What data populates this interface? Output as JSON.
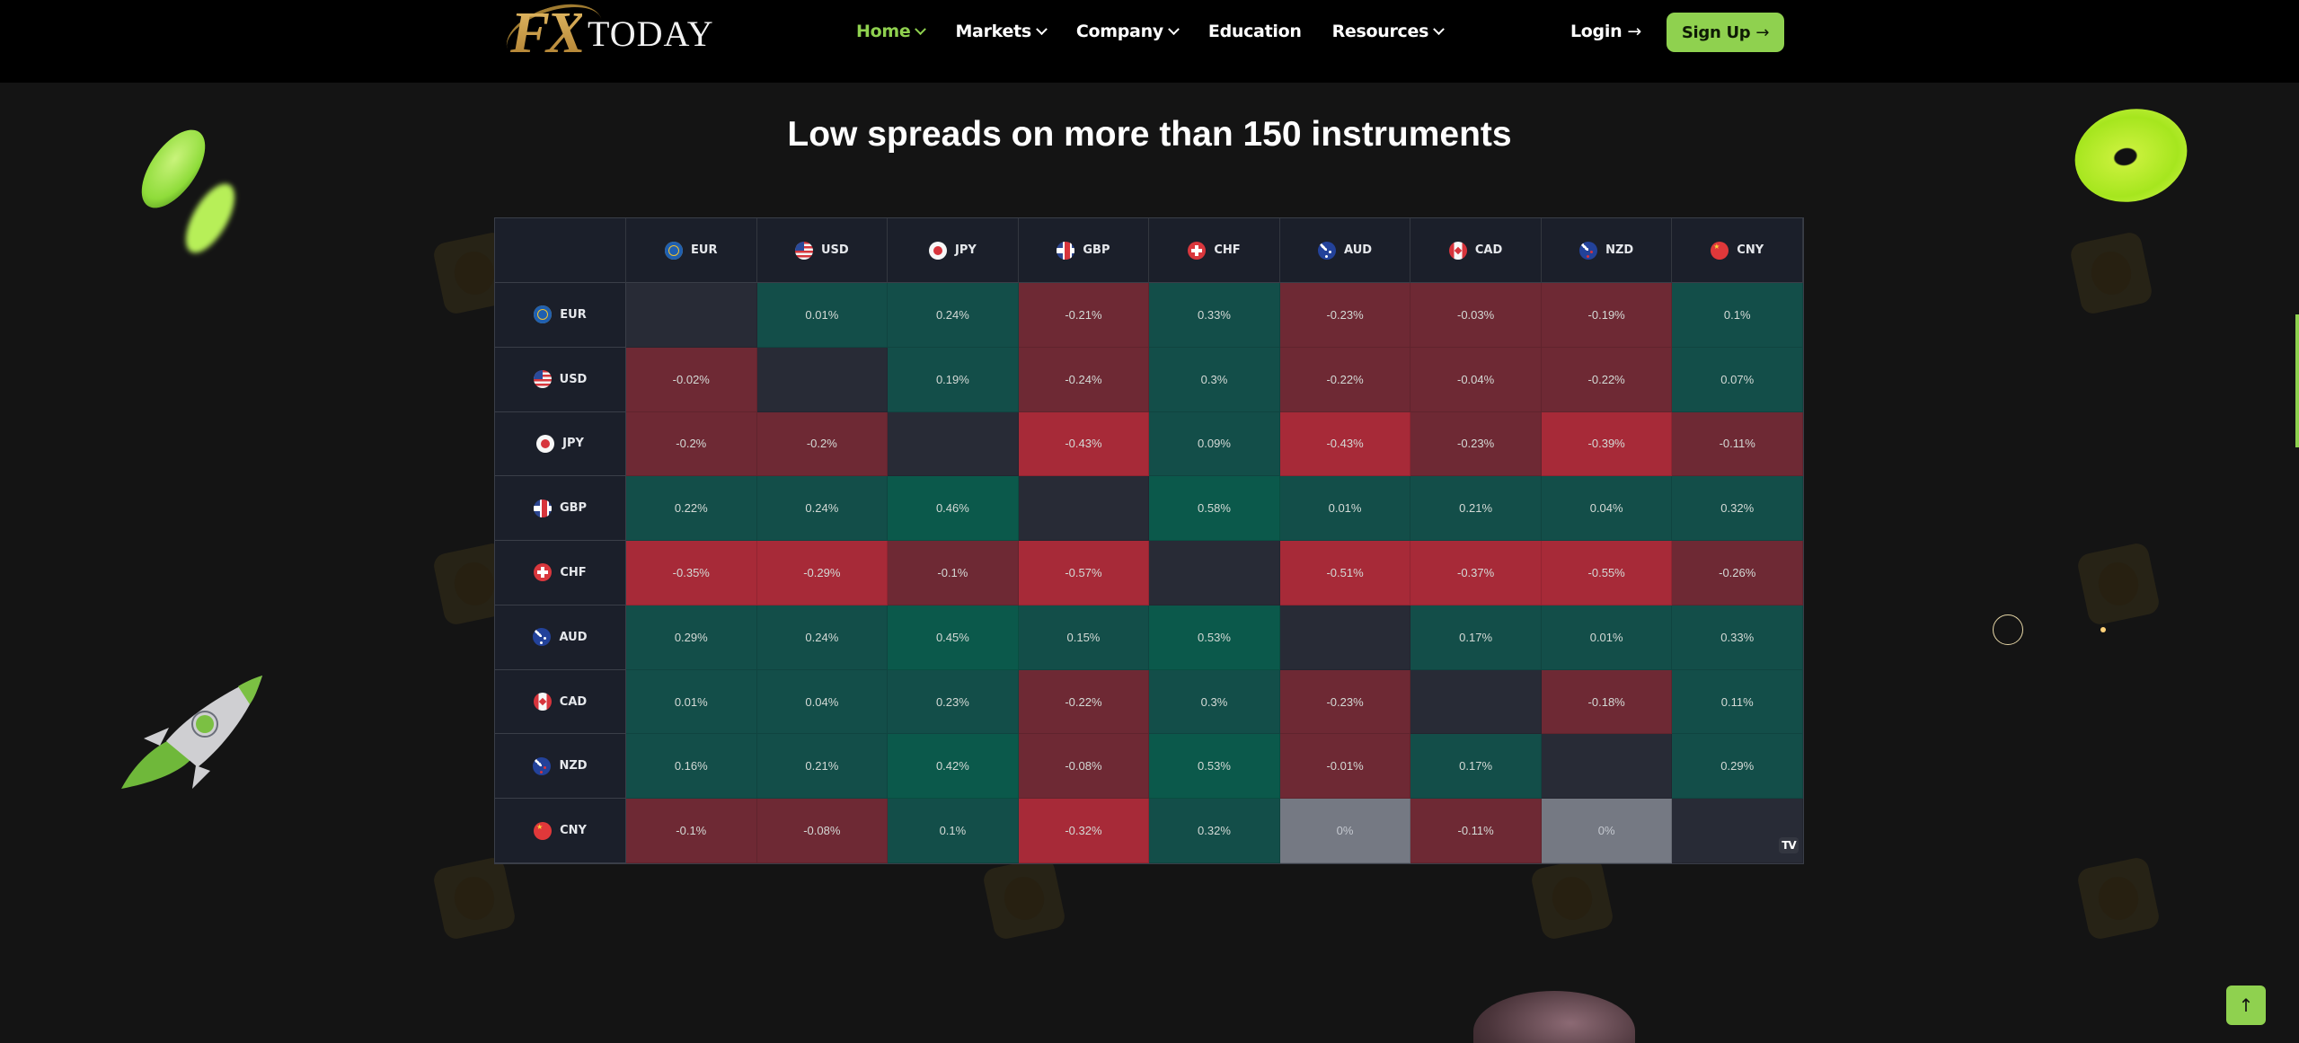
{
  "header": {
    "logo": {
      "mark": "FX",
      "text": "TODAY"
    },
    "nav": [
      {
        "label": "Home",
        "has_dropdown": true,
        "active": true
      },
      {
        "label": "Markets",
        "has_dropdown": true,
        "active": false
      },
      {
        "label": "Company",
        "has_dropdown": true,
        "active": false
      },
      {
        "label": "Education",
        "has_dropdown": false,
        "active": false
      },
      {
        "label": "Resources",
        "has_dropdown": true,
        "active": false
      }
    ],
    "login_label": "Login",
    "signup_label": "Sign Up",
    "arrow_icon": "→"
  },
  "section": {
    "title": "Low spreads on more than 150 instruments"
  },
  "colors": {
    "accent": "#8fd14f",
    "positive": "#134e49",
    "positive_strong": "#0b594b",
    "negative": "#6e2934",
    "negative_strong": "#a72a38",
    "neutral": "#757983",
    "diagonal": "#282b36",
    "header_bg": "#1b1f2a"
  },
  "matrix": {
    "currencies": [
      "EUR",
      "USD",
      "JPY",
      "GBP",
      "CHF",
      "AUD",
      "CAD",
      "NZD",
      "CNY"
    ],
    "flag_icons": [
      "eu-flag-icon",
      "us-flag-icon",
      "jp-flag-icon",
      "gb-flag-icon",
      "ch-flag-icon",
      "au-flag-icon",
      "ca-flag-icon",
      "nz-flag-icon",
      "cn-flag-icon"
    ],
    "rows": [
      {
        "base": "EUR",
        "values": [
          "",
          "0.01%",
          "0.24%",
          "-0.21%",
          "0.33%",
          "-0.23%",
          "-0.03%",
          "-0.19%",
          "0.1%"
        ]
      },
      {
        "base": "USD",
        "values": [
          "-0.02%",
          "",
          "0.19%",
          "-0.24%",
          "0.3%",
          "-0.22%",
          "-0.04%",
          "-0.22%",
          "0.07%"
        ]
      },
      {
        "base": "JPY",
        "values": [
          "-0.2%",
          "-0.2%",
          "",
          "-0.43%",
          "0.09%",
          "-0.43%",
          "-0.23%",
          "-0.39%",
          "-0.11%"
        ]
      },
      {
        "base": "GBP",
        "values": [
          "0.22%",
          "0.24%",
          "0.46%",
          "",
          "0.58%",
          "0.01%",
          "0.21%",
          "0.04%",
          "0.32%"
        ]
      },
      {
        "base": "CHF",
        "values": [
          "-0.35%",
          "-0.29%",
          "-0.1%",
          "-0.57%",
          "",
          "-0.51%",
          "-0.37%",
          "-0.55%",
          "-0.26%"
        ]
      },
      {
        "base": "AUD",
        "values": [
          "0.29%",
          "0.24%",
          "0.45%",
          "0.15%",
          "0.53%",
          "",
          "0.17%",
          "0.01%",
          "0.33%"
        ]
      },
      {
        "base": "CAD",
        "values": [
          "0.01%",
          "0.04%",
          "0.23%",
          "-0.22%",
          "0.3%",
          "-0.23%",
          "",
          "-0.18%",
          "0.11%"
        ]
      },
      {
        "base": "NZD",
        "values": [
          "0.16%",
          "0.21%",
          "0.42%",
          "-0.08%",
          "0.53%",
          "-0.01%",
          "0.17%",
          "",
          "0.29%"
        ]
      },
      {
        "base": "CNY",
        "values": [
          "-0.1%",
          "-0.08%",
          "0.1%",
          "-0.32%",
          "0.32%",
          "0%",
          "-0.11%",
          "0%",
          ""
        ]
      }
    ],
    "attribution": "TV"
  },
  "scroll_top_icon": "↑"
}
